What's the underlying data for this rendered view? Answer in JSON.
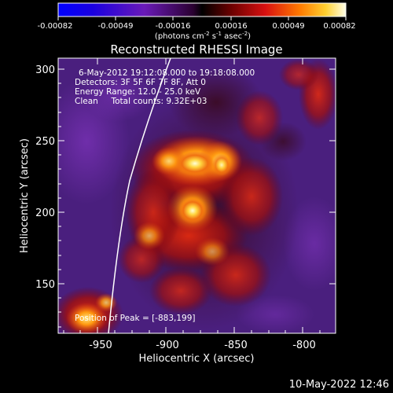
{
  "colorbar": {
    "tick_labels": [
      "-0.00082",
      "-0.00049",
      "-0.00016",
      "0.00016",
      "0.00049",
      "0.00082"
    ],
    "units_prefix": "(photons cm",
    "units_sup1": "-2",
    "units_mid1": " s",
    "units_sup2": "-1",
    "units_mid2": " asec",
    "units_sup3": "-2",
    "units_suffix": ")"
  },
  "plot": {
    "title": "Reconstructed RHESSI Image",
    "xlabel": "Heliocentric X (arcsec)",
    "ylabel": "Heliocentric Y (arcsec)",
    "x_ticks": [
      "-950",
      "-900",
      "-850",
      "-800"
    ],
    "y_ticks": [
      "300",
      "250",
      "200",
      "150"
    ],
    "info_lines": [
      "6-May-2012 19:12:08.000 to 19:18:08.000",
      "Detectors: 3F 5F 6F 7F 8F, Att 0",
      "Energy Range: 12.0 - 25.0 keV",
      "Clean     Total counts: 9.32E+03"
    ],
    "peak_label": "Position of Peak = [-883,199]"
  },
  "footer": {
    "timestamp": "10-May-2022 12:46"
  }
}
